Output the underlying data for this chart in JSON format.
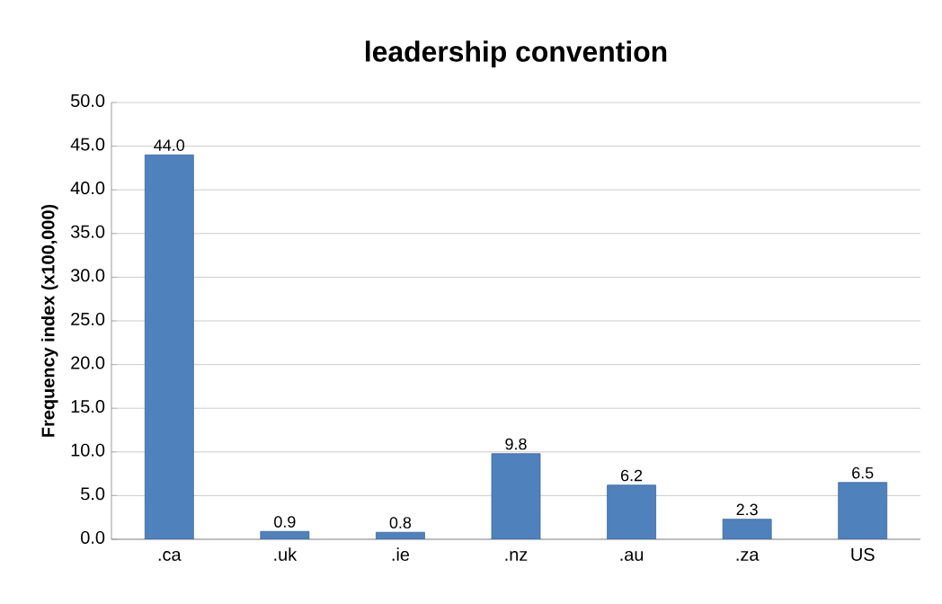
{
  "chart_data": {
    "type": "bar",
    "title": "leadership convention",
    "ylabel": "Frequency index (x100,000)",
    "categories": [
      ".ca",
      ".uk",
      ".ie",
      ".nz",
      ".au",
      ".za",
      "US"
    ],
    "values": [
      44.0,
      0.9,
      0.8,
      9.8,
      6.2,
      2.3,
      6.5
    ],
    "value_labels": [
      "44.0",
      "0.9",
      "0.8",
      "9.8",
      "6.2",
      "2.3",
      "6.5"
    ],
    "color": "#4f81bd",
    "ylim": [
      0,
      50
    ],
    "yticks": [
      {
        "value": 0,
        "label": "0.0"
      },
      {
        "value": 5,
        "label": "5.0"
      },
      {
        "value": 10,
        "label": "10.0"
      },
      {
        "value": 15,
        "label": "15.0"
      },
      {
        "value": 20,
        "label": "20.0"
      },
      {
        "value": 25,
        "label": "25.0"
      },
      {
        "value": 30,
        "label": "30.0"
      },
      {
        "value": 35,
        "label": "35.0"
      },
      {
        "value": 40,
        "label": "40.0"
      },
      {
        "value": 45,
        "label": "45.0"
      },
      {
        "value": 50,
        "label": "50.0"
      }
    ],
    "grid": "y"
  }
}
